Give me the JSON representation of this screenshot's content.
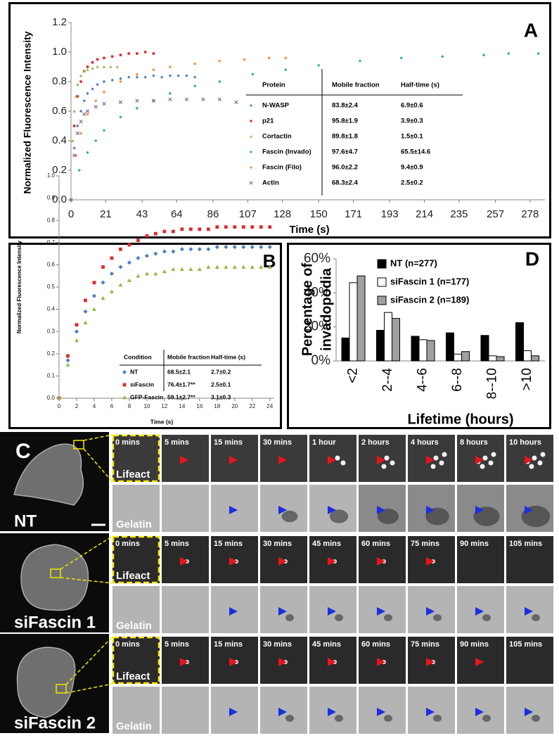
{
  "chart_data": [
    {
      "panel": "A",
      "type": "scatter",
      "x_label": "Time (s)",
      "y_label": "Normalized Fluorescence Intensity",
      "xlim": [
        0,
        287
      ],
      "ylim": [
        0,
        1.2
      ],
      "xticks": [
        0,
        21,
        43,
        64,
        86,
        107,
        128,
        150,
        171,
        193,
        214,
        235,
        257,
        278
      ],
      "yticks": [
        {
          "value": 0,
          "label": "0.0"
        },
        0.2,
        0.4,
        0.6,
        0.8,
        {
          "value": 1,
          "label": "1.0"
        },
        1.2
      ],
      "series": [
        {
          "name": "N-WASP",
          "color": "#4a7ebb",
          "marker": "diamond",
          "x": [
            0,
            2,
            4,
            6,
            8,
            10,
            13,
            16,
            20,
            25,
            30,
            35,
            40,
            45,
            50,
            55,
            60,
            65,
            70,
            75
          ],
          "values": [
            0,
            0.35,
            0.5,
            0.6,
            0.67,
            0.72,
            0.75,
            0.78,
            0.8,
            0.81,
            0.82,
            0.83,
            0.83,
            0.83,
            0.84,
            0.83,
            0.84,
            0.84,
            0.84,
            0.83
          ]
        },
        {
          "name": "p21",
          "color": "#e0292f",
          "marker": "square",
          "x": [
            0,
            2,
            4,
            6,
            8,
            10,
            13,
            16,
            20,
            25,
            30,
            35,
            40,
            45,
            50
          ],
          "values": [
            0,
            0.5,
            0.7,
            0.8,
            0.87,
            0.9,
            0.93,
            0.95,
            0.96,
            0.97,
            0.98,
            0.99,
            0.99,
            1.0,
            0.99
          ]
        },
        {
          "name": "Cortactin",
          "color": "#8fb945",
          "marker": "triangle",
          "x": [
            0,
            1,
            2,
            3,
            4,
            6,
            8,
            10,
            13,
            16,
            20,
            24,
            28
          ],
          "values": [
            0,
            0.4,
            0.6,
            0.7,
            0.78,
            0.84,
            0.87,
            0.88,
            0.89,
            0.9,
            0.9,
            0.9,
            0.9
          ]
        },
        {
          "name": "Fascin (Invado)",
          "color": "#2ea8b8",
          "marker": "diamond",
          "x": [
            0,
            5,
            10,
            15,
            20,
            30,
            40,
            50,
            60,
            75,
            90,
            110,
            130,
            150,
            175,
            200,
            225,
            250,
            265,
            283
          ],
          "values": [
            0,
            0.2,
            0.32,
            0.4,
            0.47,
            0.56,
            0.62,
            0.67,
            0.72,
            0.77,
            0.8,
            0.85,
            0.88,
            0.91,
            0.94,
            0.96,
            0.97,
            0.98,
            0.99,
            0.99
          ]
        },
        {
          "name": "Fascin (Filo)",
          "color": "#f29a4f",
          "marker": "circle",
          "x": [
            0,
            3,
            6,
            10,
            15,
            20,
            30,
            40,
            50,
            60,
            75,
            90,
            105,
            120,
            130
          ],
          "values": [
            0,
            0.3,
            0.45,
            0.58,
            0.67,
            0.73,
            0.8,
            0.85,
            0.88,
            0.9,
            0.92,
            0.94,
            0.95,
            0.96,
            0.96
          ]
        },
        {
          "name": "Actin",
          "color": "#8064a2",
          "marker": "cross",
          "x": [
            0,
            2,
            4,
            6,
            8,
            10,
            15,
            20,
            30,
            40,
            50,
            60,
            70,
            80,
            90,
            100
          ],
          "values": [
            0,
            0.3,
            0.45,
            0.53,
            0.58,
            0.6,
            0.63,
            0.65,
            0.66,
            0.67,
            0.67,
            0.68,
            0.68,
            0.68,
            0.68,
            0.66
          ]
        }
      ],
      "table": {
        "columns": [
          "Protein",
          "Mobile fraction",
          "Half-time (s)"
        ],
        "rows": [
          [
            "83.8±2.4",
            "6.9±0.6"
          ],
          [
            "95.8±1.9",
            "3.9±0.3"
          ],
          [
            "89.8±1.8",
            "1.5±0.1"
          ],
          [
            "97.6±4.7",
            "65.5±14.6"
          ],
          [
            "96.0±2.2",
            "9.4±0.9"
          ],
          [
            "68.3±2.4",
            "2.5±0.2"
          ]
        ]
      }
    },
    {
      "panel": "B",
      "type": "scatter",
      "x_label": "Time (s)",
      "y_label": "Normalized Fluorescence Intensity",
      "xlim": [
        0,
        24.5
      ],
      "ylim": [
        0,
        1
      ],
      "xticks": [
        0,
        2,
        4,
        6,
        8,
        10,
        12,
        14,
        16,
        18,
        20,
        22,
        24
      ],
      "yticks": [
        {
          "value": 0,
          "label": "0.0"
        },
        0.1,
        0.2,
        0.3,
        0.4,
        0.5,
        0.6,
        0.7,
        0.8,
        0.9,
        {
          "value": 1,
          "label": "1.0"
        }
      ],
      "series": [
        {
          "name": "NT",
          "color": "#4a7ebb",
          "marker": "diamond",
          "x": [
            0,
            1,
            2,
            3,
            4,
            5,
            6,
            7,
            8,
            9,
            10,
            11,
            12,
            13,
            14,
            15,
            16,
            17,
            18,
            19,
            20,
            21,
            22,
            23,
            24
          ],
          "values": [
            0,
            0.17,
            0.3,
            0.39,
            0.46,
            0.52,
            0.56,
            0.59,
            0.61,
            0.63,
            0.64,
            0.65,
            0.66,
            0.66,
            0.67,
            0.67,
            0.67,
            0.67,
            0.68,
            0.68,
            0.68,
            0.68,
            0.68,
            0.68,
            0.68
          ]
        },
        {
          "name": "siFascin",
          "color": "#e0292f",
          "marker": "square",
          "x": [
            0,
            1,
            2,
            3,
            4,
            5,
            6,
            7,
            8,
            9,
            10,
            11,
            12,
            13,
            14,
            15,
            16,
            17,
            18,
            19,
            20,
            21,
            22,
            23,
            24
          ],
          "values": [
            0,
            0.19,
            0.33,
            0.44,
            0.52,
            0.59,
            0.63,
            0.67,
            0.69,
            0.71,
            0.73,
            0.74,
            0.75,
            0.75,
            0.76,
            0.76,
            0.76,
            0.76,
            0.77,
            0.77,
            0.77,
            0.77,
            0.77,
            0.77,
            0.77
          ]
        },
        {
          "name": "GFP-Fascin",
          "color": "#8fb945",
          "marker": "triangle",
          "x": [
            0,
            1,
            2,
            3,
            4,
            5,
            6,
            7,
            8,
            9,
            10,
            11,
            12,
            13,
            14,
            15,
            16,
            17,
            18,
            19,
            20,
            21,
            22,
            23,
            24
          ],
          "values": [
            0,
            0.15,
            0.26,
            0.34,
            0.4,
            0.45,
            0.48,
            0.51,
            0.53,
            0.55,
            0.56,
            0.56,
            0.57,
            0.58,
            0.58,
            0.58,
            0.58,
            0.59,
            0.59,
            0.59,
            0.59,
            0.59,
            0.59,
            0.59,
            0.59
          ]
        }
      ],
      "table": {
        "columns": [
          "Condition",
          "Mobile fraction",
          "Half-time (s)"
        ],
        "rows": [
          [
            "68.5±2.1",
            "2.7±0.2"
          ],
          [
            "76.4±1.7**",
            "2.5±0.1"
          ],
          [
            "59.1±2.7**",
            "3.1±0.3"
          ]
        ]
      }
    },
    {
      "panel": "D",
      "type": "bar",
      "x_label": "Lifetime (hours)",
      "y_label": [
        "Percentage of",
        "invadopodia"
      ],
      "categories": [
        "<2",
        "2--4",
        "4--6",
        "6--8",
        "8--10",
        ">10"
      ],
      "ylim": [
        0,
        60
      ],
      "yticks": [
        {
          "value": 0,
          "label": "0%"
        },
        {
          "value": 20,
          "label": "20%"
        },
        {
          "value": 40,
          "label": "40%"
        },
        {
          "value": 60,
          "label": "60%"
        }
      ],
      "series": [
        {
          "name": "NT (n=277)",
          "color": "#000000",
          "values": [
            13.5,
            18,
            14.5,
            16.5,
            15,
            22.5
          ]
        },
        {
          "name": "siFascin 1 (n=177)",
          "color": "#ffffff",
          "values": [
            46,
            28.5,
            12.5,
            4,
            3,
            6
          ]
        },
        {
          "name": "siFascin 2 (n=189)",
          "color": "#a0a0a0",
          "values": [
            50,
            25,
            12,
            5.5,
            2.5,
            3
          ]
        }
      ]
    }
  ],
  "panel_c": {
    "label": "C",
    "groups": [
      {
        "name": "NT",
        "row_labels": [
          "Lifeact",
          "Gelatin"
        ],
        "times": [
          "0 mins",
          "5 mins",
          "15 mins",
          "30 mins",
          "1 hour",
          "2 hours",
          "4 hours",
          "8 hours",
          "10 hours"
        ]
      },
      {
        "name": "siFascin 1",
        "row_labels": [
          "Lifeact",
          "Gelatin"
        ],
        "times": [
          "0 mins",
          "5 mins",
          "15 mins",
          "30 mins",
          "45 mins",
          "60 mins",
          "75 mins",
          "90 mins",
          "105 mins"
        ]
      },
      {
        "name": "siFascin 2",
        "row_labels": [
          "Lifeact",
          "Gelatin"
        ],
        "times": [
          "0 mins",
          "5 mins",
          "15 mins",
          "30 mins",
          "45 mins",
          "60 mins",
          "75 mins",
          "90 mins",
          "105 mins"
        ]
      }
    ]
  }
}
